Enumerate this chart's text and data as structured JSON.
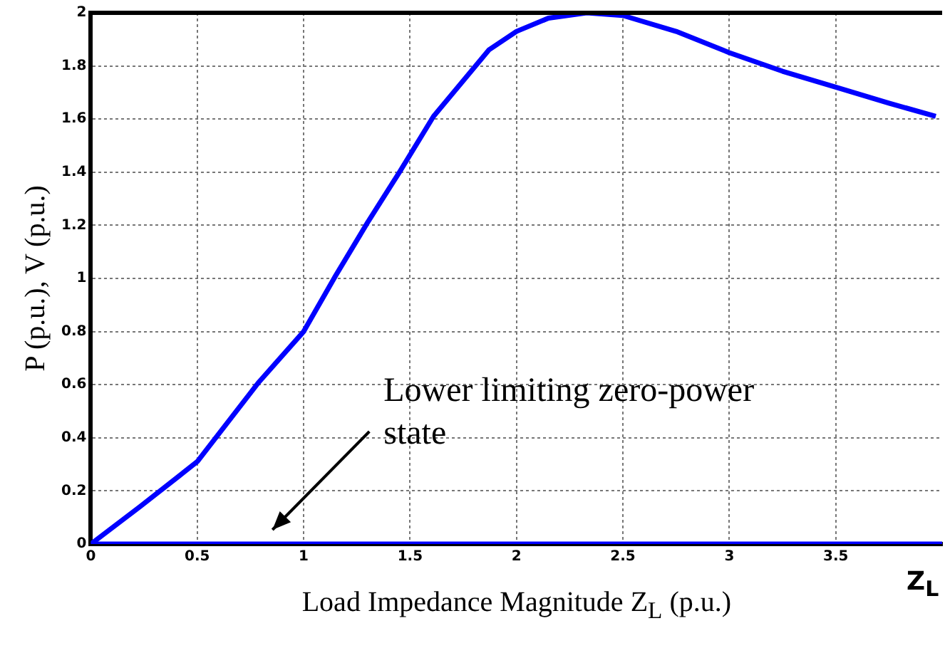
{
  "chart_data": {
    "type": "line",
    "xlabel": "Load Impedance Magnitude Z$_{L}$ (p.u.)",
    "ylabel": "P (p.u.), V (p.u.)",
    "series": [
      {
        "color": "#0000ff",
        "x": [
          0,
          0.23,
          0.5,
          0.79,
          1,
          1.15,
          1.3,
          1.45,
          1.61,
          1.87,
          2,
          2.15,
          2.33,
          2.5,
          2.75,
          3,
          3.25,
          3.5,
          3.75,
          3.97
        ],
        "values": [
          0,
          0.14,
          0.31,
          0.61,
          0.8,
          1.01,
          1.21,
          1.4,
          1.61,
          1.86,
          1.93,
          1.98,
          2,
          1.99,
          1.93,
          1.85,
          1.78,
          1.72,
          1.66,
          1.61
        ]
      },
      {
        "color": "#0000ff",
        "x": [
          0,
          4
        ],
        "values": [
          0,
          0
        ]
      }
    ],
    "xlim": [
      0,
      4
    ],
    "xticks": [
      0,
      0.5,
      1,
      1.5,
      2,
      2.5,
      3,
      3.5
    ],
    "ylim": [
      0,
      2
    ],
    "yticks": [
      0,
      0.2,
      0.4,
      0.6,
      0.8,
      1,
      1.2,
      1.4,
      1.6,
      1.8,
      2
    ],
    "grid": true,
    "legend": false,
    "marker": "none",
    "line_style": "solid",
    "annotations": [
      "Lower limiting zero-power state",
      "Z$_{L}$"
    ]
  }
}
